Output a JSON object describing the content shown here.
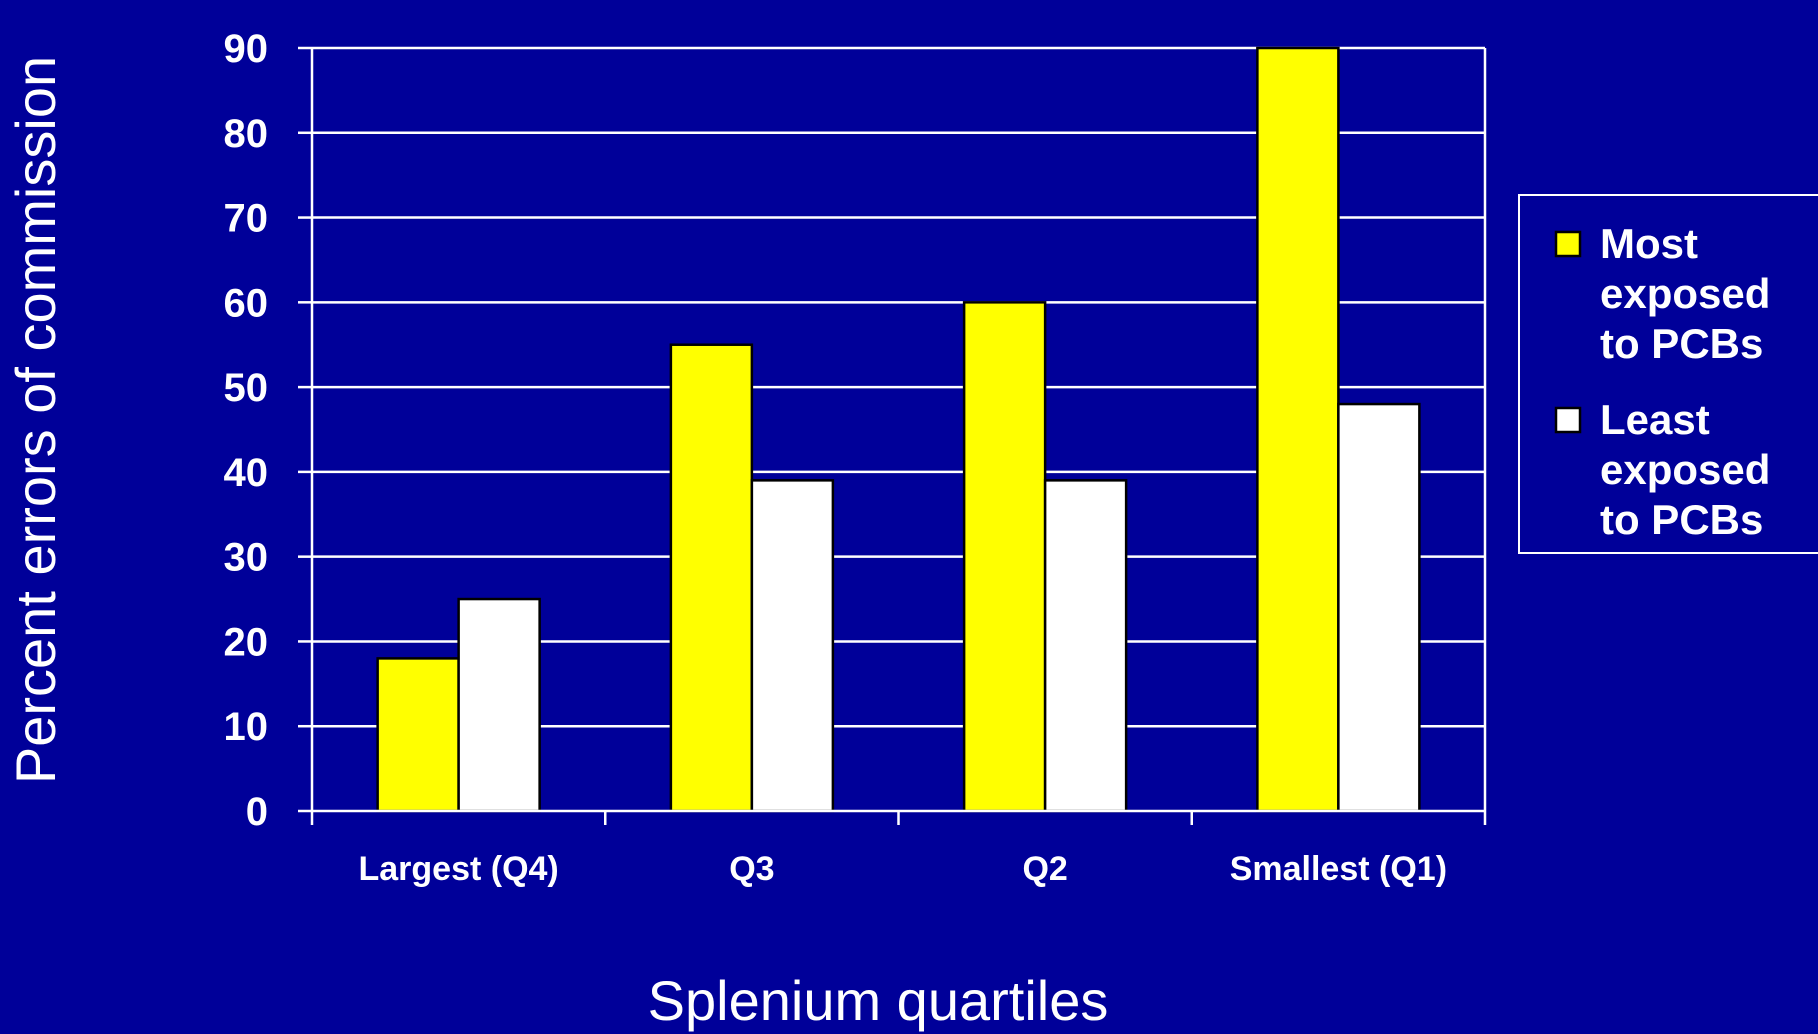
{
  "chart_data": {
    "type": "bar",
    "categories": [
      "Largest (Q4)",
      "Q3",
      "Q2",
      "Smallest (Q1)"
    ],
    "series": [
      {
        "name": "Most exposed to PCBs",
        "values": [
          18,
          55,
          60,
          90
        ],
        "color": "#ffff00"
      },
      {
        "name": "Least exposed to PCBs",
        "values": [
          25,
          39,
          39,
          48
        ],
        "color": "#ffffff"
      }
    ],
    "legend_lines": [
      [
        "Most",
        "exposed",
        "to PCBs"
      ],
      [
        "Least",
        "exposed",
        "to PCBs"
      ]
    ],
    "title": "",
    "xlabel": "Splenium quartiles",
    "ylabel": "Percent errors of commission",
    "ylim": [
      0,
      90
    ],
    "yticks": [
      0,
      10,
      20,
      30,
      40,
      50,
      60,
      70,
      80,
      90
    ],
    "grid": true,
    "legend_position": "right",
    "colors": {
      "background": "#000099",
      "gridline": "#ffffff",
      "text": "#ffffff"
    }
  }
}
